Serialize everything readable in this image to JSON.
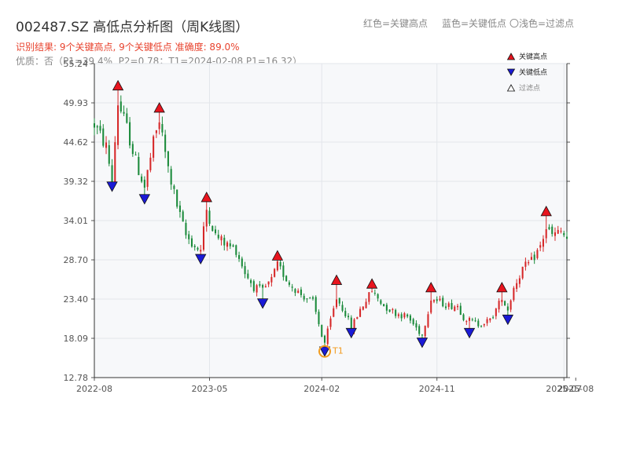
{
  "header": {
    "title": "002487.SZ 高低点分析图（周K线图）",
    "legend_red": "红色=关键高点",
    "legend_blue": "蓝色=关键低点",
    "legend_light": "〇浅色=过滤点",
    "result": "识别结果: 9个关键高点, 9个关键低点 准确度: 89.0%",
    "quality": "优质：否（P1=39.4%, P2=0.78；T1=2024-02-08 P1=16.32）"
  },
  "colors": {
    "up": "#d62728",
    "down": "#1a8a3a",
    "high_marker": "#e8141e",
    "low_marker": "#1a1ad6",
    "t1": "#f29b1f",
    "title_red": "#e8432e",
    "quality_gray": "#888888",
    "plot_bg": "#f7f8fa"
  },
  "chart_data": {
    "type": "candlestick",
    "title": "002487.SZ 高低点分析图（周K线图）",
    "y_ticks": [
      "12.78",
      "18.09",
      "23.40",
      "28.70",
      "34.01",
      "39.32",
      "44.62",
      "49.93",
      "55.24"
    ],
    "ylim": [
      12.78,
      55.24
    ],
    "x_ticks": [
      "2022-08",
      "2023-05",
      "2024-02",
      "2024-11",
      "2025-07",
      "2025-08"
    ],
    "x_tick_weeks": [
      0,
      39,
      77,
      116,
      159,
      163
    ],
    "xlim_weeks": [
      0,
      160
    ],
    "grid": true,
    "legend_position": "top-right",
    "legend": [
      {
        "label": "关键高点",
        "kind": "high"
      },
      {
        "label": "关键低点",
        "kind": "low"
      },
      {
        "label": "过滤点",
        "kind": "filtered"
      }
    ],
    "key_highs": [
      {
        "week": 8,
        "value": 52.3
      },
      {
        "week": 22,
        "value": 49.3
      },
      {
        "week": 38,
        "value": 37.2
      },
      {
        "week": 62,
        "value": 29.3
      },
      {
        "week": 82,
        "value": 26.0
      },
      {
        "week": 94,
        "value": 25.5
      },
      {
        "week": 114,
        "value": 25.0
      },
      {
        "week": 138,
        "value": 25.0
      },
      {
        "week": 153,
        "value": 35.3
      }
    ],
    "key_lows": [
      {
        "week": 6,
        "value": 38.6
      },
      {
        "week": 17,
        "value": 36.9
      },
      {
        "week": 36,
        "value": 28.8
      },
      {
        "week": 57,
        "value": 22.8
      },
      {
        "week": 78,
        "value": 16.3
      },
      {
        "week": 87,
        "value": 18.8
      },
      {
        "week": 111,
        "value": 17.5
      },
      {
        "week": 127,
        "value": 18.8
      },
      {
        "week": 140,
        "value": 20.6
      }
    ],
    "t1": {
      "label": "T1",
      "week": 78,
      "value": 16.32
    },
    "anchors": [
      [
        0,
        47.0
      ],
      [
        4,
        44.0
      ],
      [
        6,
        39.5
      ],
      [
        8,
        50.0
      ],
      [
        11,
        46.5
      ],
      [
        14,
        42.0
      ],
      [
        17,
        38.5
      ],
      [
        20,
        44.5
      ],
      [
        22,
        47.5
      ],
      [
        25,
        41.0
      ],
      [
        28,
        36.0
      ],
      [
        31,
        32.0
      ],
      [
        34,
        30.5
      ],
      [
        36,
        30.0
      ],
      [
        38,
        35.5
      ],
      [
        41,
        32.0
      ],
      [
        44,
        31.0
      ],
      [
        48,
        30.0
      ],
      [
        51,
        27.0
      ],
      [
        54,
        25.0
      ],
      [
        57,
        24.5
      ],
      [
        60,
        26.0
      ],
      [
        62,
        28.0
      ],
      [
        66,
        25.5
      ],
      [
        70,
        24.0
      ],
      [
        74,
        23.0
      ],
      [
        77,
        18.5
      ],
      [
        78,
        17.5
      ],
      [
        80,
        20.5
      ],
      [
        82,
        23.5
      ],
      [
        85,
        21.5
      ],
      [
        87,
        19.5
      ],
      [
        90,
        22.0
      ],
      [
        94,
        24.5
      ],
      [
        98,
        22.5
      ],
      [
        102,
        21.5
      ],
      [
        106,
        21.0
      ],
      [
        109,
        19.5
      ],
      [
        111,
        18.5
      ],
      [
        114,
        23.5
      ],
      [
        117,
        23.0
      ],
      [
        120,
        22.5
      ],
      [
        123,
        22.5
      ],
      [
        125,
        21.0
      ],
      [
        127,
        20.5
      ],
      [
        130,
        20.0
      ],
      [
        134,
        20.5
      ],
      [
        136,
        22.0
      ],
      [
        138,
        23.5
      ],
      [
        140,
        22.0
      ],
      [
        142,
        25.0
      ],
      [
        145,
        27.5
      ],
      [
        148,
        28.5
      ],
      [
        151,
        30.5
      ],
      [
        153,
        33.0
      ],
      [
        155,
        32.0
      ],
      [
        158,
        32.5
      ],
      [
        160,
        31.5
      ]
    ]
  }
}
